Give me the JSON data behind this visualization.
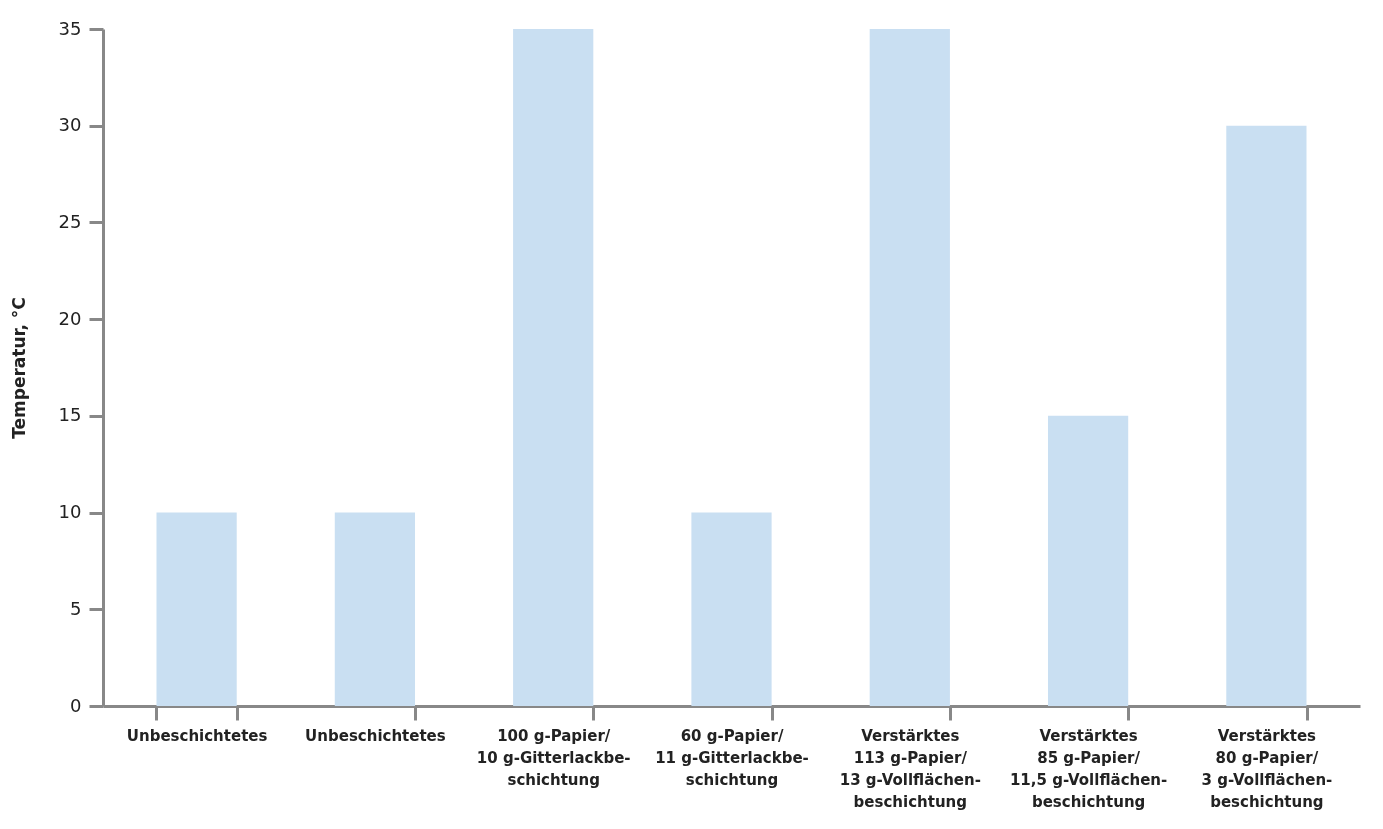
{
  "chart_data": {
    "type": "bar",
    "ylabel": "Temperatur, °C",
    "categories": [
      "Unbeschichtetes",
      "Unbeschichtetes",
      "100 g-Papier/\n10 g-Gitterlackbe-\nschichtung",
      "60 g-Papier/\n11 g-Gitterlackbe-\nschichtung",
      "Verstärktes\n113 g-Papier/\n13 g-Vollflächen-\nbeschichtung",
      "Verstärktes\n85 g-Papier/\n11,5 g-Vollflächen-\nbeschichtung",
      "Verstärktes\n80 g-Papier/\n3 g-Vollflächen-\nbeschichtung"
    ],
    "values": [
      10,
      10,
      35,
      10,
      35,
      15,
      30
    ],
    "color": "#c9dff2",
    "ylim": [
      0,
      35
    ],
    "yticks": [
      0,
      5,
      10,
      15,
      20,
      25,
      30,
      35
    ],
    "grid": false
  }
}
